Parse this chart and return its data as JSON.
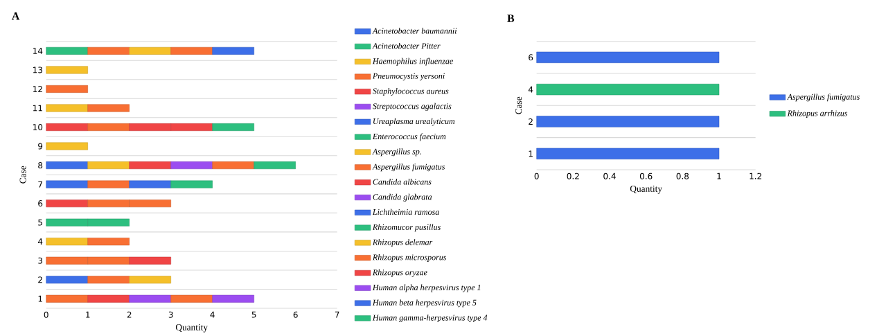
{
  "chart_data": [
    {
      "type": "bar",
      "title": "A",
      "orientation": "horizontal",
      "stacked": true,
      "xlabel": "Quantity",
      "ylabel": "Case",
      "categories": [
        "14",
        "13",
        "12",
        "11",
        "10",
        "9",
        "8",
        "7",
        "6",
        "5",
        "4",
        "3",
        "2",
        "1"
      ],
      "xlim": [
        0,
        7
      ],
      "xticks": [
        0,
        1,
        2,
        3,
        4,
        5,
        6,
        7
      ],
      "grid": "y",
      "legend": "right",
      "series": [
        {
          "name": "Acinetobacter baumannii",
          "color": "#3d6fe8",
          "values": [
            null,
            null,
            null,
            null,
            null,
            null,
            1,
            1,
            null,
            null,
            null,
            null,
            1,
            null
          ]
        },
        {
          "name": "Acinetobacter Pitter",
          "color": "#2dbf7f",
          "values": [
            1,
            null,
            null,
            null,
            null,
            null,
            null,
            null,
            null,
            1,
            null,
            null,
            null,
            null
          ]
        },
        {
          "name": "Haemophilus influenzae",
          "color": "#f5c02a",
          "values": [
            null,
            1,
            null,
            1,
            null,
            1,
            1,
            null,
            null,
            null,
            1,
            null,
            null,
            null
          ]
        },
        {
          "name": "Pneumocystis yersoni",
          "color": "#f86f33",
          "values": [
            1,
            null,
            1,
            1,
            null,
            null,
            null,
            1,
            null,
            null,
            1,
            1,
            1,
            1
          ]
        },
        {
          "name": "Staphylococcus aureus",
          "color": "#f04545",
          "values": [
            null,
            null,
            null,
            null,
            1,
            null,
            1,
            null,
            1,
            null,
            null,
            null,
            null,
            1
          ]
        },
        {
          "name": "Streptococcus agalactis",
          "color": "#9b4df0",
          "values": [
            null,
            null,
            null,
            null,
            null,
            null,
            1,
            null,
            null,
            null,
            null,
            null,
            null,
            1
          ]
        },
        {
          "name": "Ureaplasma urealyticum",
          "color": "#3d6fe8",
          "values": [
            null,
            null,
            null,
            null,
            null,
            null,
            null,
            1,
            null,
            null,
            null,
            null,
            null,
            null
          ]
        },
        {
          "name": "Enterococcus faecium",
          "color": "#2dbf7f",
          "values": [
            null,
            null,
            null,
            null,
            null,
            null,
            null,
            1,
            null,
            1,
            null,
            null,
            null,
            null
          ]
        },
        {
          "name": "Aspergillus sp.",
          "color": "#f5c02a",
          "values": [
            1,
            null,
            null,
            null,
            null,
            null,
            null,
            null,
            null,
            null,
            null,
            null,
            1,
            null
          ]
        },
        {
          "name": "Aspergillus fumigatus",
          "color": "#f86f33",
          "values": [
            1,
            null,
            null,
            null,
            1,
            null,
            1,
            null,
            1,
            null,
            null,
            1,
            null,
            1
          ]
        },
        {
          "name": "Candida albicans",
          "color": "#f04545",
          "values": [
            null,
            null,
            null,
            null,
            1,
            null,
            null,
            null,
            null,
            null,
            null,
            1,
            null,
            null
          ]
        },
        {
          "name": "Candida glabrata",
          "color": "#9b4df0",
          "values": [
            null,
            null,
            null,
            null,
            null,
            null,
            null,
            null,
            null,
            null,
            null,
            null,
            null,
            1
          ]
        },
        {
          "name": "Lichtheimia ramosa",
          "color": "#3d6fe8",
          "values": [
            1,
            null,
            null,
            null,
            null,
            null,
            null,
            null,
            null,
            null,
            null,
            null,
            null,
            null
          ]
        },
        {
          "name": "Rhizomucor pusillus",
          "color": "#2dbf7f",
          "values": [
            null,
            null,
            null,
            null,
            null,
            null,
            1,
            null,
            null,
            null,
            null,
            null,
            null,
            null
          ]
        },
        {
          "name": "Rhizopus delemar",
          "color": "#f5c02a",
          "values": [
            null,
            null,
            null,
            null,
            null,
            null,
            null,
            null,
            null,
            null,
            null,
            null,
            null,
            null
          ]
        },
        {
          "name": "Rhizopus microsporus",
          "color": "#f86f33",
          "values": [
            null,
            null,
            null,
            null,
            null,
            null,
            null,
            null,
            1,
            null,
            null,
            null,
            null,
            null
          ]
        },
        {
          "name": "Rhizopus oryzae",
          "color": "#f04545",
          "values": [
            null,
            null,
            null,
            null,
            1,
            null,
            null,
            null,
            null,
            null,
            null,
            null,
            null,
            null
          ]
        },
        {
          "name": "Human alpha herpesvirus type 1",
          "color": "#9b4df0",
          "values": [
            null,
            null,
            null,
            null,
            null,
            null,
            null,
            null,
            null,
            null,
            null,
            null,
            null,
            null
          ]
        },
        {
          "name": "Human beta herpesvirus type 5",
          "color": "#3d6fe8",
          "values": [
            null,
            null,
            null,
            null,
            null,
            null,
            null,
            null,
            null,
            null,
            null,
            null,
            null,
            null
          ]
        },
        {
          "name": "Human gamma-herpesvirus type 4",
          "color": "#2dbf7f",
          "values": [
            null,
            null,
            null,
            null,
            1,
            null,
            null,
            null,
            null,
            null,
            null,
            null,
            null,
            null
          ]
        }
      ]
    },
    {
      "type": "bar",
      "title": "B",
      "orientation": "horizontal",
      "stacked": true,
      "xlabel": "Quantity",
      "ylabel": "Case",
      "categories": [
        "6",
        "4",
        "2",
        "1"
      ],
      "xlim": [
        0,
        1.2
      ],
      "xticks": [
        0,
        0.2,
        0.4,
        0.6,
        0.8,
        1,
        1.2
      ],
      "grid": "y",
      "legend": "right",
      "series": [
        {
          "name": "Aspergillus fumigatus",
          "color": "#3d6fe8",
          "values": [
            1,
            null,
            1,
            1
          ]
        },
        {
          "name": "Rhizopus arrhizus",
          "color": "#2dbf7f",
          "values": [
            null,
            1,
            null,
            null
          ]
        }
      ]
    }
  ]
}
